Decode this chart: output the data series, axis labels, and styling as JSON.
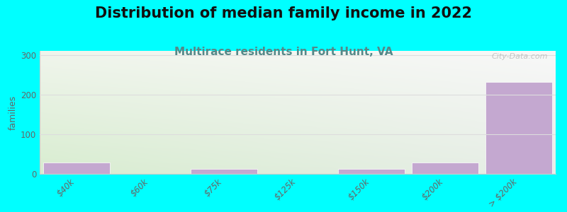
{
  "title": "Distribution of median family income in 2022",
  "subtitle": "Multirace residents in Fort Hunt, VA",
  "categories": [
    "$40k",
    "$60k",
    "$75k",
    "$125k",
    "$150k",
    "$200k",
    "> $200k"
  ],
  "values": [
    28,
    0,
    12,
    0,
    12,
    28,
    232
  ],
  "bar_color": "#c4a8d0",
  "background_color": "#00ffff",
  "plot_bg_color_topleft": "#f5f8f0",
  "plot_bg_color_topright": "#f8f8f8",
  "plot_bg_color_bottomleft": "#d8edd0",
  "plot_bg_color_bottomright": "#e8eee8",
  "ylabel": "families",
  "ylim": [
    0,
    310
  ],
  "yticks": [
    0,
    100,
    200,
    300
  ],
  "title_fontsize": 15,
  "subtitle_fontsize": 11,
  "subtitle_color": "#558888",
  "watermark": "City-Data.com",
  "grid_color": "#dddddd",
  "tick_label_color": "#666666",
  "spine_color": "#cccccc"
}
